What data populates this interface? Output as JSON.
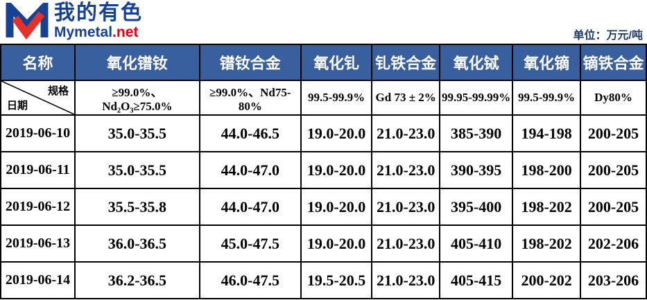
{
  "brand": {
    "name_cn": "我的有色",
    "name_en_blue": "Mymetal",
    "name_en_red": ".net",
    "logo_icon": "m-checkmark-logo-icon"
  },
  "unit_label": "单位：万元/吨",
  "colors": {
    "header_bg": "#3A5F9E",
    "header_text": "#FFFFFF",
    "price_up_red": "#FF0000",
    "price_black": "#000000",
    "brand_blue": "#164194",
    "brand_red": "#E60012"
  },
  "table": {
    "name_header": "名称",
    "corner": {
      "top_right": "规格",
      "bottom_left": "日期"
    },
    "columns": [
      {
        "name": "氧化镨钕",
        "spec": "≥99.0%、Nd₂O₃≥75.0%"
      },
      {
        "name": "镨钕合金",
        "spec": "≥99.0%、Nd75-80%"
      },
      {
        "name": "氧化钆",
        "spec": "99.5-99.9%"
      },
      {
        "name": "钆铁合金",
        "spec": "Gd 73 ± 2%"
      },
      {
        "name": "氧化铽",
        "spec": "99.95-99.99%"
      },
      {
        "name": "氧化镝",
        "spec": "99.5-99.9%"
      },
      {
        "name": "镝铁合金",
        "spec": "Dy80%"
      }
    ],
    "rows": [
      {
        "date": "2019-06-10",
        "values": [
          {
            "text": "35.0-35.5",
            "color": "black"
          },
          {
            "text": "44.0-46.5",
            "color": "black"
          },
          {
            "text": "19.0-20.0",
            "color": "black"
          },
          {
            "text": "21.0-23.0",
            "color": "black"
          },
          {
            "text": "385-390",
            "color": "black"
          },
          {
            "text": "194-198",
            "color": "black"
          },
          {
            "text": "200-205",
            "color": "black"
          }
        ]
      },
      {
        "date": "2019-06-11",
        "values": [
          {
            "text": "35.0-35.5",
            "color": "black"
          },
          {
            "text": "44.0-47.0",
            "color": "red"
          },
          {
            "text": "19.0-20.0",
            "color": "black"
          },
          {
            "text": "21.0-23.0",
            "color": "black"
          },
          {
            "text": "390-395",
            "color": "red"
          },
          {
            "text": "198-200",
            "color": "red"
          },
          {
            "text": "200-205",
            "color": "black"
          }
        ]
      },
      {
        "date": "2019-06-12",
        "values": [
          {
            "text": "35.5-35.8",
            "color": "red"
          },
          {
            "text": "44.0-47.0",
            "color": "black"
          },
          {
            "text": "19.0-20.0",
            "color": "black"
          },
          {
            "text": "21.0-23.0",
            "color": "black"
          },
          {
            "text": "395-400",
            "color": "red"
          },
          {
            "text": "198-202",
            "color": "red"
          },
          {
            "text": "200-205",
            "color": "black"
          }
        ]
      },
      {
        "date": "2019-06-13",
        "values": [
          {
            "text": "36.0-36.5",
            "color": "red"
          },
          {
            "text": "45.0-47.5",
            "color": "red"
          },
          {
            "text": "19.0-20.0",
            "color": "black"
          },
          {
            "text": "21.0-23.0",
            "color": "black"
          },
          {
            "text": "405-410",
            "color": "red"
          },
          {
            "text": "198-202",
            "color": "black"
          },
          {
            "text": "202-206",
            "color": "red"
          }
        ]
      },
      {
        "date": "2019-06-14",
        "values": [
          {
            "text": "36.2-36.5",
            "color": "red"
          },
          {
            "text": "46.0-47.5",
            "color": "red"
          },
          {
            "text": "19.5-20.5",
            "color": "red"
          },
          {
            "text": "21.0-23.0",
            "color": "black"
          },
          {
            "text": "405-415",
            "color": "red"
          },
          {
            "text": "200-202",
            "color": "red"
          },
          {
            "text": "203-206",
            "color": "red"
          }
        ]
      }
    ]
  }
}
